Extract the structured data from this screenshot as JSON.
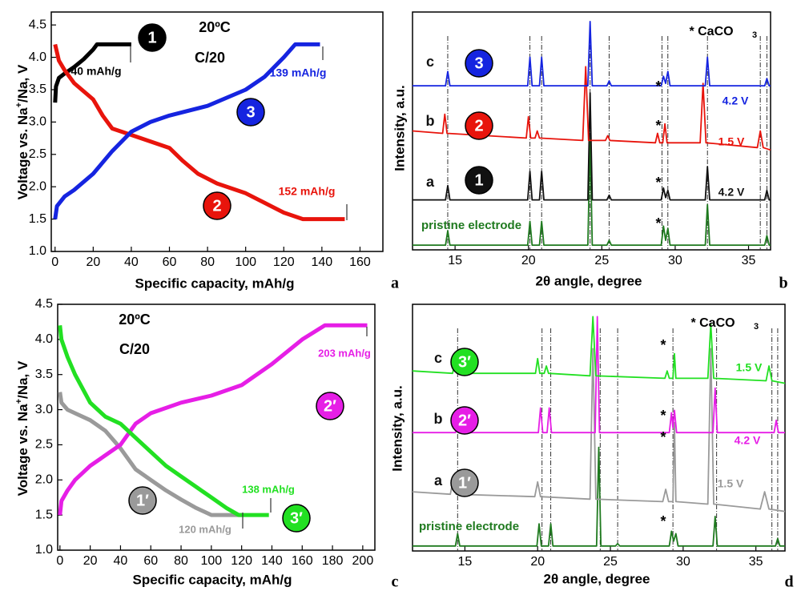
{
  "chart_data": [
    {
      "type": "line",
      "panel_label": "a",
      "x_label": "Specific capacity, mAh/g",
      "y_label": [
        "Voltage vs. Na",
        "+",
        "/Na, V"
      ],
      "xlim": [
        -2,
        172
      ],
      "ylim": [
        1.0,
        4.7
      ],
      "xticks": [
        0,
        20,
        40,
        60,
        80,
        100,
        120,
        140,
        160
      ],
      "yticks": [
        {
          "value": 1,
          "label": "1.0"
        },
        1.5,
        {
          "value": 2,
          "label": "2.0"
        },
        2.5,
        {
          "value": 3,
          "label": "3.0"
        },
        3.5,
        {
          "value": 4,
          "label": "4.0"
        },
        4.5
      ],
      "annotations": [
        "20ºC",
        "C/20",
        "40 mAh/g",
        "139 mAh/g",
        "152 mAh/g"
      ],
      "series": [
        {
          "name": "1",
          "color": "#000000",
          "x": [
            0,
            0.5,
            2,
            5,
            10,
            15,
            20,
            22,
            30,
            40
          ],
          "values": [
            3.3,
            3.55,
            3.68,
            3.75,
            3.85,
            3.97,
            4.12,
            4.2,
            4.2,
            4.2
          ]
        },
        {
          "name": "2",
          "color": "#e8140c",
          "x": [
            0,
            2,
            5,
            10,
            20,
            25,
            30,
            40,
            50,
            60,
            67,
            75,
            85,
            100,
            110,
            120,
            130,
            152
          ],
          "values": [
            4.2,
            3.95,
            3.8,
            3.6,
            3.35,
            3.1,
            2.9,
            2.8,
            2.7,
            2.6,
            2.4,
            2.2,
            2.05,
            1.9,
            1.75,
            1.6,
            1.5,
            1.5
          ]
        },
        {
          "name": "3",
          "color": "#1524e0",
          "x": [
            0,
            1,
            5,
            10,
            20,
            30,
            40,
            50,
            60,
            80,
            100,
            110,
            120,
            126,
            139
          ],
          "values": [
            1.5,
            1.7,
            1.85,
            1.95,
            2.2,
            2.55,
            2.85,
            3.0,
            3.1,
            3.25,
            3.5,
            3.7,
            4.0,
            4.2,
            4.2
          ]
        }
      ]
    },
    {
      "type": "xrd",
      "panel_label": "b",
      "x_label": "2θ angle, degree",
      "y_label": "Intensity, a.u.",
      "xlim": [
        12.1,
        36.5
      ],
      "ylim": [
        0,
        100
      ],
      "xticks": [
        15,
        20,
        25,
        30,
        35
      ],
      "reference_lines": [
        14.5,
        20.1,
        20.9,
        24.2,
        25.5,
        29.1,
        29.5,
        32.2,
        35.8,
        36.25
      ],
      "annotations": [
        "*",
        "*",
        "*",
        "*",
        "* CaCO",
        "3"
      ],
      "series": [
        {
          "name": "pristine electrode",
          "color": "#1f7a1f",
          "x": [
            12.1,
            14.35,
            14.5,
            14.65,
            19.95,
            20.1,
            20.25,
            20.75,
            20.9,
            21.05,
            24.05,
            24.2,
            24.35,
            25.35,
            25.5,
            25.65,
            29.05,
            29.2,
            29.35,
            29.5,
            29.65,
            32.05,
            32.2,
            32.35,
            36.1,
            36.25,
            36.4,
            36.5
          ],
          "values": [
            2,
            2,
            8,
            2,
            2,
            12,
            2,
            2,
            12,
            2,
            2,
            47,
            2,
            2,
            4,
            2,
            2,
            10,
            4,
            9,
            2,
            2,
            19,
            2,
            2,
            6,
            2,
            2
          ]
        },
        {
          "name": "a",
          "badge": "1",
          "label": "4.2 V",
          "color": "#111111",
          "x": [
            12.1,
            14.35,
            14.5,
            14.65,
            19.95,
            20.1,
            20.25,
            20.75,
            20.9,
            21.05,
            24.05,
            24.2,
            24.35,
            25.35,
            25.5,
            25.65,
            29.05,
            29.2,
            29.35,
            29.5,
            29.65,
            32.05,
            32.2,
            32.35,
            36.1,
            36.25,
            36.4,
            36.5
          ],
          "values": [
            21,
            21,
            27,
            21,
            21,
            33,
            21,
            21,
            33,
            21,
            21,
            66,
            21,
            21,
            23,
            21,
            21,
            26,
            22,
            25,
            21,
            21,
            35,
            21,
            21,
            25,
            21,
            21
          ]
        },
        {
          "name": "b",
          "badge": "2",
          "label": "1.5 V",
          "color": "#e8140c",
          "x": [
            12.1,
            14.15,
            14.3,
            14.45,
            19.85,
            20.0,
            20.15,
            20.45,
            20.6,
            20.75,
            23.7,
            23.9,
            24.1,
            25.25,
            25.4,
            25.55,
            28.65,
            28.8,
            28.95,
            29.15,
            29.3,
            29.45,
            31.7,
            31.9,
            32.1,
            35.6,
            35.8,
            36.0,
            36.5
          ],
          "values": [
            50,
            49,
            57,
            49,
            47,
            56,
            47,
            47,
            50,
            47,
            46,
            77,
            46,
            46,
            48,
            46,
            45,
            49,
            45,
            45,
            53,
            45,
            45,
            70,
            45,
            43,
            50,
            43,
            42
          ]
        },
        {
          "name": "c",
          "badge": "3",
          "label": "4.2 V",
          "color": "#1524e0",
          "x": [
            12.1,
            14.35,
            14.5,
            14.65,
            19.95,
            20.1,
            20.25,
            20.75,
            20.9,
            21.05,
            24.05,
            24.2,
            24.35,
            25.35,
            25.5,
            25.65,
            29.05,
            29.2,
            29.35,
            29.5,
            29.65,
            32.05,
            32.2,
            32.35,
            36.1,
            36.25,
            36.4,
            36.5
          ],
          "values": [
            69,
            69,
            75,
            69,
            69,
            81,
            69,
            69,
            81,
            69,
            69,
            96,
            69,
            69,
            71,
            69,
            69,
            73,
            70,
            75,
            69,
            69,
            81,
            69,
            69,
            72,
            69,
            69
          ]
        }
      ]
    },
    {
      "type": "line",
      "panel_label": "c",
      "x_label": "Specific capacity, mAh/g",
      "y_label": [
        "Voltage vs. Na",
        "+",
        "/Na, V"
      ],
      "xlim": [
        -1.5,
        208
      ],
      "ylim": [
        1.0,
        4.5
      ],
      "xticks": [
        0,
        20,
        40,
        60,
        80,
        100,
        120,
        140,
        160,
        180,
        200
      ],
      "yticks": [
        {
          "value": 1,
          "label": "1.0"
        },
        1.5,
        {
          "value": 2,
          "label": "2.0"
        },
        2.5,
        {
          "value": 3,
          "label": "3.0"
        },
        3.5,
        {
          "value": 4,
          "label": "4.0"
        },
        4.5
      ],
      "annotations": [
        "20ºC",
        "C/20",
        "203 mAh/g",
        "138 mAh/g",
        "120 mAh/g"
      ],
      "series": [
        {
          "name": "1′",
          "color": "#9a9a9a",
          "x": [
            0,
            1,
            5,
            10,
            20,
            30,
            40,
            50,
            60,
            70,
            80,
            90,
            100,
            120
          ],
          "values": [
            3.25,
            3.1,
            3.0,
            2.95,
            2.85,
            2.7,
            2.45,
            2.15,
            2.0,
            1.85,
            1.72,
            1.6,
            1.5,
            1.5
          ]
        },
        {
          "name": "2′",
          "color": "#e61ee6",
          "x": [
            0,
            1,
            5,
            10,
            20,
            30,
            40,
            50,
            60,
            80,
            100,
            120,
            140,
            160,
            175,
            203
          ],
          "values": [
            1.5,
            1.7,
            1.85,
            2.0,
            2.2,
            2.35,
            2.5,
            2.8,
            2.95,
            3.1,
            3.2,
            3.35,
            3.65,
            4.0,
            4.2,
            4.2
          ]
        },
        {
          "name": "3′",
          "color": "#22e022",
          "x": [
            0,
            1,
            5,
            10,
            20,
            30,
            40,
            50,
            60,
            70,
            80,
            90,
            100,
            110,
            118,
            138
          ],
          "values": [
            4.2,
            4.0,
            3.75,
            3.5,
            3.1,
            2.9,
            2.8,
            2.6,
            2.4,
            2.2,
            2.05,
            1.9,
            1.75,
            1.6,
            1.5,
            1.5
          ]
        }
      ]
    },
    {
      "type": "xrd",
      "panel_label": "d",
      "x_label": "2θ angle, degree",
      "y_label": "Intensity, a.u.",
      "xlim": [
        11.4,
        37.0
      ],
      "ylim": [
        0,
        100
      ],
      "xticks": [
        15,
        20,
        25,
        30,
        35
      ],
      "reference_lines": [
        14.5,
        20.3,
        20.9,
        24.3,
        25.5,
        29.3,
        32.3,
        36.1,
        36.5
      ],
      "annotations": [
        "*",
        "*",
        "*",
        "*",
        "* CaCO",
        "3"
      ],
      "series": [
        {
          "name": "pristine electrode",
          "color": "#1f7a1f",
          "x": [
            11.4,
            14.35,
            14.5,
            14.65,
            19.95,
            20.1,
            20.25,
            20.75,
            20.9,
            21.05,
            24.05,
            24.2,
            24.35,
            25.35,
            25.5,
            25.65,
            29.05,
            29.2,
            29.35,
            29.5,
            29.65,
            32.05,
            32.2,
            32.35,
            36.35,
            36.5,
            36.65,
            37.0
          ],
          "values": [
            2,
            2,
            7,
            2,
            2,
            11,
            2,
            2,
            11,
            2,
            2,
            42,
            2,
            2,
            3,
            2,
            2,
            8,
            4,
            7,
            2,
            2,
            14,
            2,
            2,
            5,
            2,
            2
          ]
        },
        {
          "name": "a",
          "badge": "1′",
          "label": "1.5 V",
          "color": "#9a9a9a",
          "x": [
            11.4,
            14.0,
            14.2,
            14.4,
            19.8,
            20.0,
            20.2,
            23.6,
            23.8,
            24.0,
            28.6,
            28.8,
            29.0,
            29.3,
            29.4,
            29.5,
            31.7,
            31.9,
            32.1,
            35.3,
            35.6,
            35.9,
            37.0
          ],
          "values": [
            24,
            23,
            29,
            23,
            22,
            28,
            22,
            21,
            82,
            21,
            20,
            25,
            20,
            20,
            52,
            20,
            19,
            82,
            19,
            17,
            24,
            17,
            16
          ]
        },
        {
          "name": "b",
          "badge": "2′",
          "label": "4.2 V",
          "color": "#e61ee6",
          "x": [
            11.4,
            14.35,
            14.5,
            14.65,
            20.05,
            20.2,
            20.35,
            20.65,
            20.8,
            20.95,
            23.95,
            24.1,
            24.25,
            29.05,
            29.2,
            29.3,
            29.4,
            29.55,
            32.05,
            32.2,
            32.35,
            36.25,
            36.4,
            36.55,
            37.0
          ],
          "values": [
            48,
            48,
            53,
            48,
            48,
            58,
            48,
            48,
            58,
            48,
            48,
            95,
            48,
            48,
            56,
            50,
            57,
            48,
            48,
            66,
            48,
            48,
            53,
            48,
            48
          ]
        },
        {
          "name": "c",
          "badge": "3′",
          "label": "1.5 V",
          "color": "#22e022",
          "x": [
            11.4,
            14.15,
            14.3,
            14.45,
            19.85,
            20.0,
            20.15,
            20.45,
            20.6,
            20.75,
            23.6,
            23.8,
            24.0,
            28.75,
            28.9,
            29.05,
            29.3,
            29.4,
            29.5,
            31.7,
            31.9,
            32.1,
            35.7,
            35.9,
            36.1,
            37.0
          ],
          "values": [
            73,
            72,
            76,
            72,
            72,
            78,
            72,
            72,
            75,
            72,
            71,
            95,
            71,
            70,
            73,
            70,
            70,
            80,
            70,
            70,
            92,
            70,
            69,
            75,
            69,
            68
          ]
        }
      ]
    }
  ]
}
